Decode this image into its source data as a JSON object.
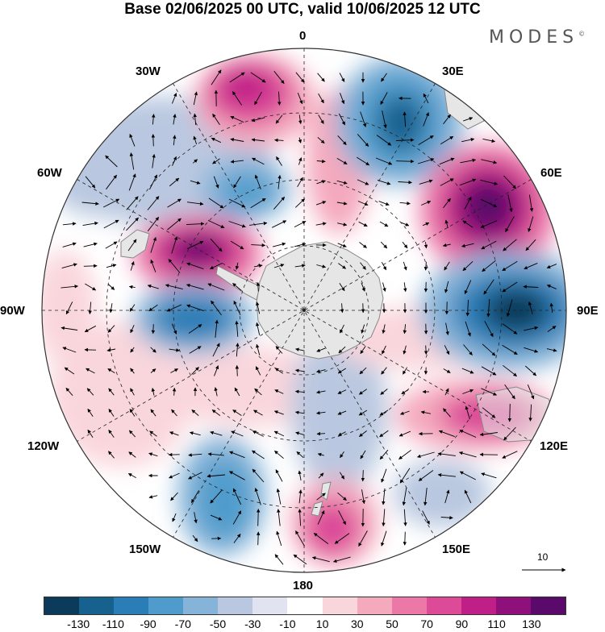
{
  "title": "Base 02/06/2025 00 UTC, valid 10/06/2025 12 UTC",
  "brand": "MODES",
  "brand_mark": "©",
  "longitude_labels": {
    "lon_0": "0",
    "lon_30e": "30E",
    "lon_60e": "60E",
    "lon_90e": "90E",
    "lon_120e": "120E",
    "lon_150e": "150E",
    "lon_180": "180",
    "lon_150w": "150W",
    "lon_120w": "120W",
    "lon_90w": "90W",
    "lon_60w": "60W",
    "lon_30w": "30W"
  },
  "reference_vector": {
    "value": "10"
  },
  "colorbar": {
    "colors": [
      "#0b3a5a",
      "#17618f",
      "#2a7db6",
      "#4f9ccc",
      "#86b4d8",
      "#b9c8e0",
      "#e2e3f0",
      "#ffffff",
      "#f9d6dc",
      "#f4a9bd",
      "#ec78a8",
      "#dc4a98",
      "#c01f87",
      "#8f0f7b",
      "#5a0a6b"
    ],
    "labels": [
      "-130",
      "-110",
      "-90",
      "-70",
      "-50",
      "-30",
      "-10",
      "10",
      "30",
      "50",
      "70",
      "90",
      "110",
      "130"
    ]
  },
  "map_style": {
    "ocean": "#ffffff",
    "land": "#e6e6e6",
    "coastline": "#888888",
    "graticule": "#222222"
  }
}
